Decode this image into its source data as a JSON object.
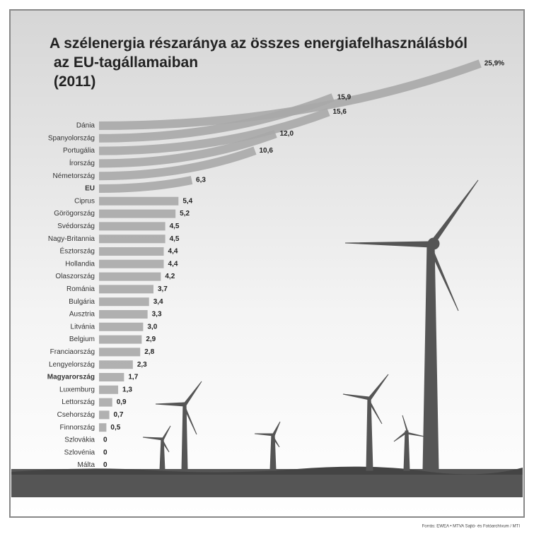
{
  "chart_data": {
    "type": "bar",
    "orientation": "horizontal",
    "title": "A szélenergia részaránya az összes energiafelhasználásból az EU-tagállamaiban (2011)",
    "categories": [
      "Dánia",
      "Spanyolország",
      "Portugália",
      "Írország",
      "Németország",
      "EU",
      "Ciprus",
      "Görögország",
      "Svédország",
      "Nagy-Britannia",
      "Észtország",
      "Hollandia",
      "Olaszország",
      "Románia",
      "Bulgária",
      "Ausztria",
      "Litvánia",
      "Belgium",
      "Franciaország",
      "Lengyelország",
      "Magyarország",
      "Luxemburg",
      "Lettország",
      "Csehország",
      "Finnország",
      "Szlovákia",
      "Szlovénia",
      "Málta"
    ],
    "values": [
      25.9,
      15.9,
      15.6,
      12.0,
      10.6,
      6.3,
      5.4,
      5.2,
      4.5,
      4.5,
      4.4,
      4.4,
      4.2,
      3.7,
      3.4,
      3.3,
      3.0,
      2.9,
      2.8,
      2.3,
      1.7,
      1.3,
      0.9,
      0.7,
      0.5,
      0,
      0,
      0
    ],
    "value_labels": [
      "25,9%",
      "15,9",
      "15,6",
      "12,0",
      "10,6",
      "6,3",
      "5,4",
      "5,2",
      "4,5",
      "4,5",
      "4,4",
      "4,4",
      "4,2",
      "3,7",
      "3,4",
      "3,3",
      "3,0",
      "2,9",
      "2,8",
      "2,3",
      "1,7",
      "1,3",
      "0,9",
      "0,7",
      "0,5",
      "0",
      "0",
      "0"
    ],
    "color": "#a9a9a9",
    "source": "Forrás: EWEA • MTVA Sajtó- és Fotóarchívum / MTI"
  }
}
